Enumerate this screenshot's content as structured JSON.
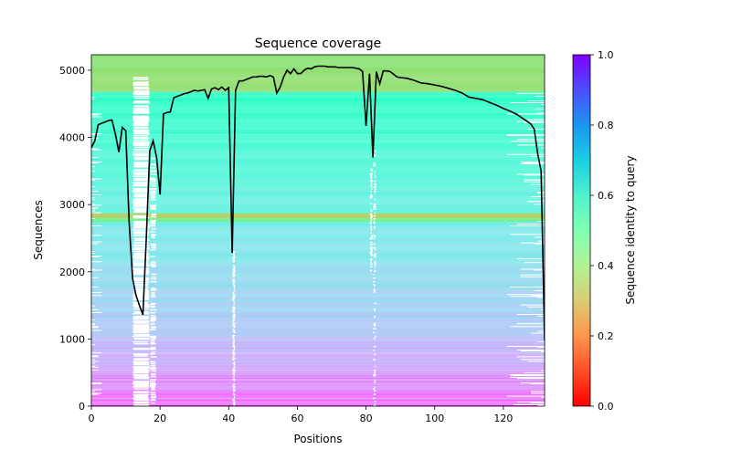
{
  "chart_data": {
    "type": "heatmap",
    "title": "Sequence coverage",
    "xlabel": "Positions",
    "ylabel": "Sequences",
    "xlim": [
      0,
      132
    ],
    "ylim": [
      0,
      5230
    ],
    "x_ticks": [
      0,
      20,
      40,
      60,
      80,
      100,
      120
    ],
    "y_ticks": [
      0,
      1000,
      2000,
      3000,
      4000,
      5000
    ],
    "colorbar": {
      "label": "Sequence identity to query",
      "range": [
        0,
        1
      ],
      "ticks": [
        "0.0",
        "0.2",
        "0.4",
        "0.6",
        "0.8",
        "1.0"
      ],
      "colormap": "rainbow_r"
    },
    "coverage_line": {
      "name": "coverage",
      "color": "#000000",
      "x": [
        0,
        1,
        2,
        3,
        4,
        5,
        6,
        7,
        8,
        9,
        10,
        11,
        12,
        13,
        14,
        15,
        16,
        17,
        18,
        19,
        20,
        21,
        22,
        23,
        24,
        25,
        26,
        27,
        28,
        29,
        30,
        31,
        32,
        33,
        34,
        35,
        36,
        37,
        38,
        39,
        40,
        41,
        42,
        43,
        44,
        45,
        46,
        47,
        48,
        49,
        50,
        51,
        52,
        53,
        54,
        55,
        56,
        57,
        58,
        59,
        60,
        61,
        62,
        63,
        64,
        65,
        66,
        67,
        68,
        69,
        70,
        71,
        72,
        73,
        74,
        75,
        76,
        77,
        78,
        79,
        80,
        81,
        82,
        83,
        84,
        85,
        86,
        87,
        88,
        89,
        90,
        92,
        94,
        96,
        98,
        100,
        102,
        104,
        106,
        108,
        110,
        112,
        114,
        116,
        118,
        120,
        122,
        124,
        126,
        128,
        129,
        130,
        131,
        132
      ],
      "y": [
        3850,
        3950,
        4190,
        4210,
        4230,
        4250,
        4260,
        4050,
        3780,
        4150,
        4100,
        2750,
        1900,
        1650,
        1500,
        1360,
        2500,
        3800,
        3950,
        3700,
        3150,
        4350,
        4370,
        4380,
        4590,
        4610,
        4630,
        4650,
        4660,
        4680,
        4700,
        4690,
        4700,
        4710,
        4580,
        4720,
        4740,
        4710,
        4750,
        4700,
        4740,
        2280,
        4700,
        4840,
        4840,
        4860,
        4880,
        4900,
        4900,
        4910,
        4910,
        4900,
        4920,
        4900,
        4660,
        4750,
        4900,
        5000,
        4950,
        5020,
        4950,
        4950,
        5000,
        5030,
        5020,
        5050,
        5060,
        5060,
        5060,
        5050,
        5050,
        5050,
        5040,
        5040,
        5040,
        5040,
        5040,
        5030,
        5020,
        4980,
        4170,
        4950,
        3700,
        4980,
        4800,
        4990,
        4990,
        4980,
        4940,
        4900,
        4890,
        4880,
        4850,
        4810,
        4800,
        4780,
        4760,
        4730,
        4700,
        4660,
        4600,
        4580,
        4560,
        4520,
        4480,
        4430,
        4390,
        4340,
        4270,
        4200,
        4120,
        3750,
        3500,
        980
      ]
    }
  }
}
